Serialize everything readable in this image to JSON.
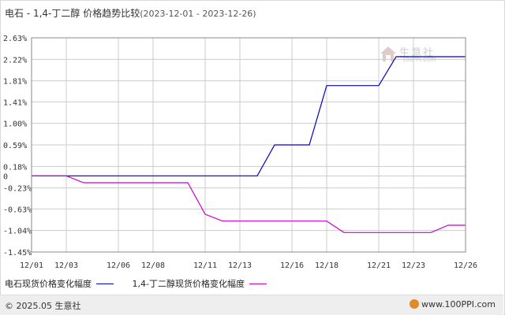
{
  "header": {
    "title": "电石 - 1,4-丁二醇 价格趋势比较",
    "date_range": "(2023-12-01 - 2023-12-26)"
  },
  "watermark": {
    "name": "生意社",
    "url": "100PPI.COM"
  },
  "footer": {
    "copyright": "© 2025.05 生意社",
    "site": "www.100PPI.com"
  },
  "colors": {
    "series1": "#0000cc",
    "series2": "#cc00cc",
    "grid": "#cccccc",
    "axis": "#555555"
  },
  "chart_data": {
    "type": "line",
    "title": "电石 - 1,4-丁二醇 价格趋势比较",
    "ylim": [
      -1.45,
      2.63
    ],
    "y_ticks": [
      "2.63%",
      "2.22%",
      "1.81%",
      "1.41%",
      "1.00%",
      "0.59%",
      "0.18%",
      "0",
      "-0.23%",
      "-0.63%",
      "-1.04%",
      "-1.45%"
    ],
    "y_tick_values": [
      2.63,
      2.22,
      1.81,
      1.41,
      1.0,
      0.59,
      0.18,
      0,
      -0.23,
      -0.63,
      -1.04,
      -1.45
    ],
    "x_ticks": [
      "12/01",
      "12/03",
      "12/06",
      "12/08",
      "12/11",
      "12/13",
      "12/16",
      "12/18",
      "12/21",
      "12/23",
      "12/26"
    ],
    "x_tick_days": [
      1,
      3,
      6,
      8,
      11,
      13,
      16,
      18,
      21,
      23,
      26
    ],
    "x_range_days": [
      1,
      26
    ],
    "grid": true,
    "legend_position": "bottom-left",
    "series": [
      {
        "name": "电石现货价格变化幅度",
        "color": "#0000cc",
        "points": [
          [
            1,
            0
          ],
          [
            3,
            0
          ],
          [
            6,
            0
          ],
          [
            8,
            0
          ],
          [
            11,
            0
          ],
          [
            13,
            0
          ],
          [
            14,
            0
          ],
          [
            15,
            0.59
          ],
          [
            17,
            0.59
          ],
          [
            18,
            1.72
          ],
          [
            21,
            1.72
          ],
          [
            22,
            2.27
          ],
          [
            26,
            2.27
          ]
        ]
      },
      {
        "name": "1,4-丁二醇现货价格变化幅度",
        "color": "#cc00cc",
        "points": [
          [
            1,
            0
          ],
          [
            3,
            0
          ],
          [
            4,
            -0.13
          ],
          [
            9,
            -0.13
          ],
          [
            10,
            -0.13
          ],
          [
            11,
            -0.73
          ],
          [
            12,
            -0.86
          ],
          [
            18,
            -0.86
          ],
          [
            19,
            -1.08
          ],
          [
            22,
            -1.08
          ],
          [
            24,
            -1.08
          ],
          [
            25,
            -0.94
          ],
          [
            26,
            -0.94
          ]
        ]
      }
    ]
  }
}
